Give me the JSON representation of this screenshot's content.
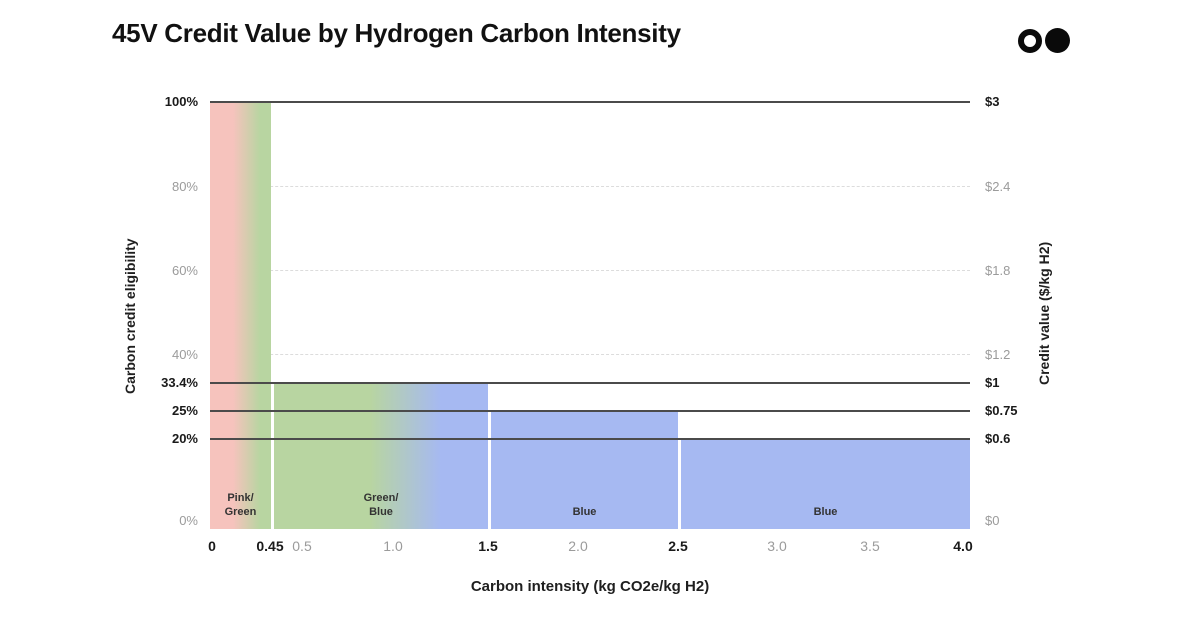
{
  "title": "45V Credit Value by Hydrogen Carbon Intensity",
  "logo": {
    "description": "two circles, left outlined ring, right filled",
    "color": "#0A0A0A"
  },
  "axes": {
    "left_label": "Carbon credit eligibility",
    "right_label": "Credit value ($/kg H2)",
    "x_label": "Carbon intensity (kg CO2e/kg H2)"
  },
  "left_ticks": [
    {
      "label": "100%",
      "bold": true
    },
    {
      "label": "80%",
      "bold": false
    },
    {
      "label": "60%",
      "bold": false
    },
    {
      "label": "40%",
      "bold": false
    },
    {
      "label": "33.4%",
      "bold": true
    },
    {
      "label": "25%",
      "bold": true
    },
    {
      "label": "20%",
      "bold": true
    },
    {
      "label": "0%",
      "bold": false
    }
  ],
  "right_ticks": [
    {
      "label": "$3",
      "bold": true
    },
    {
      "label": "$2.4",
      "bold": false
    },
    {
      "label": "$1.8",
      "bold": false
    },
    {
      "label": "$1.2",
      "bold": false
    },
    {
      "label": "$1",
      "bold": true
    },
    {
      "label": "$0.75",
      "bold": true
    },
    {
      "label": "$0.6",
      "bold": true
    },
    {
      "label": "$0",
      "bold": false
    }
  ],
  "x_ticks": [
    {
      "label": "0",
      "bold": true
    },
    {
      "label": "0.45",
      "bold": true
    },
    {
      "label": "0.5",
      "bold": false
    },
    {
      "label": "1.0",
      "bold": false
    },
    {
      "label": "1.5",
      "bold": true
    },
    {
      "label": "2.0",
      "bold": false
    },
    {
      "label": "2.5",
      "bold": true
    },
    {
      "label": "3.0",
      "bold": false
    },
    {
      "label": "3.5",
      "bold": false
    },
    {
      "label": "4.0",
      "bold": true
    }
  ],
  "bars": [
    {
      "display_label": "Pink/\nGreen"
    },
    {
      "display_label": "Green/\nBlue"
    },
    {
      "display_label": "Blue"
    },
    {
      "display_label": "Blue"
    }
  ],
  "colors": {
    "pink": "#F6C3BD",
    "green": "#B8D5A1",
    "blue": "#A6B9F2",
    "solid_line": "#4B4B4B",
    "dashed_grid": "#DCDCDC",
    "text_dark": "#1A1A1A",
    "text_gray": "#9B9B9B",
    "background": "#FFFFFF"
  },
  "chart_data": {
    "type": "bar",
    "title": "45V Credit Value by Hydrogen Carbon Intensity",
    "xlabel": "Carbon intensity (kg CO2e/kg H2)",
    "ylabel": "Carbon credit eligibility",
    "ylabel_right": "Credit value ($/kg H2)",
    "xlim": [
      0,
      4.0
    ],
    "ylim_left_pct": [
      0,
      100
    ],
    "ylim_right_dollars": [
      0,
      3
    ],
    "grid": "dashed horizontal at 40%, 60%, 80%; solid reference lines at 20%, 25%, 33.4%, 100%",
    "legend_position": "none (labels inside bars)",
    "segments": [
      {
        "label": "Pink/Green",
        "x_start": 0,
        "x_end": 0.45,
        "eligibility_pct": 100,
        "credit_value_per_kg": "$3",
        "fill": "gradient pink to green"
      },
      {
        "label": "Green/Blue",
        "x_start": 0.45,
        "x_end": 1.5,
        "eligibility_pct": 33.4,
        "credit_value_per_kg": "$1",
        "fill": "gradient green to blue"
      },
      {
        "label": "Blue",
        "x_start": 1.5,
        "x_end": 2.5,
        "eligibility_pct": 25,
        "credit_value_per_kg": "$0.75",
        "fill": "blue"
      },
      {
        "label": "Blue",
        "x_start": 2.5,
        "x_end": 4.0,
        "eligibility_pct": 20,
        "credit_value_per_kg": "$0.6",
        "fill": "blue"
      }
    ],
    "x_tick_values": [
      0,
      0.45,
      0.5,
      1.0,
      1.5,
      2.0,
      2.5,
      3.0,
      3.5,
      4.0
    ],
    "left_tick_values_pct": [
      0,
      20,
      25,
      33.4,
      40,
      60,
      80,
      100
    ],
    "right_tick_values_dollars": [
      0,
      0.6,
      0.75,
      1,
      1.2,
      1.8,
      2.4,
      3
    ]
  }
}
